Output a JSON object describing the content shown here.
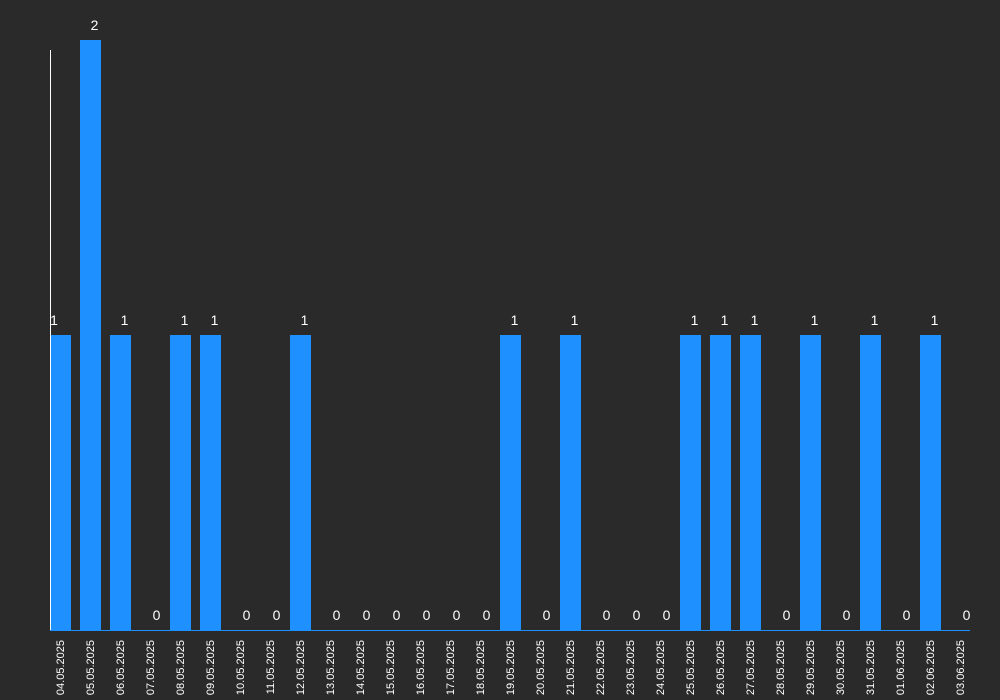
{
  "chart_data": {
    "type": "bar",
    "categories": [
      "04.05.2025",
      "05.05.2025",
      "06.05.2025",
      "07.05.2025",
      "08.05.2025",
      "09.05.2025",
      "10.05.2025",
      "11.05.2025",
      "12.05.2025",
      "13.05.2025",
      "14.05.2025",
      "15.05.2025",
      "16.05.2025",
      "17.05.2025",
      "18.05.2025",
      "19.05.2025",
      "20.05.2025",
      "21.05.2025",
      "22.05.2025",
      "23.05.2025",
      "24.05.2025",
      "25.05.2025",
      "26.05.2025",
      "27.05.2025",
      "28.05.2025",
      "29.05.2025",
      "30.05.2025",
      "31.05.2025",
      "01.06.2025",
      "02.06.2025",
      "03.06.2025"
    ],
    "values": [
      1,
      2,
      1,
      0,
      1,
      1,
      0,
      0,
      1,
      0,
      0,
      0,
      0,
      0,
      0,
      1,
      0,
      1,
      0,
      0,
      0,
      1,
      1,
      1,
      0,
      1,
      0,
      1,
      0,
      1,
      0
    ],
    "title": "",
    "xlabel": "",
    "ylabel": "",
    "ylim": [
      0,
      2
    ],
    "grid": false,
    "data_labels": true,
    "colors": {
      "bar": "#1e90ff",
      "background": "#2a2a2a",
      "axis": "#ffffff",
      "text": "#ffffff"
    }
  }
}
